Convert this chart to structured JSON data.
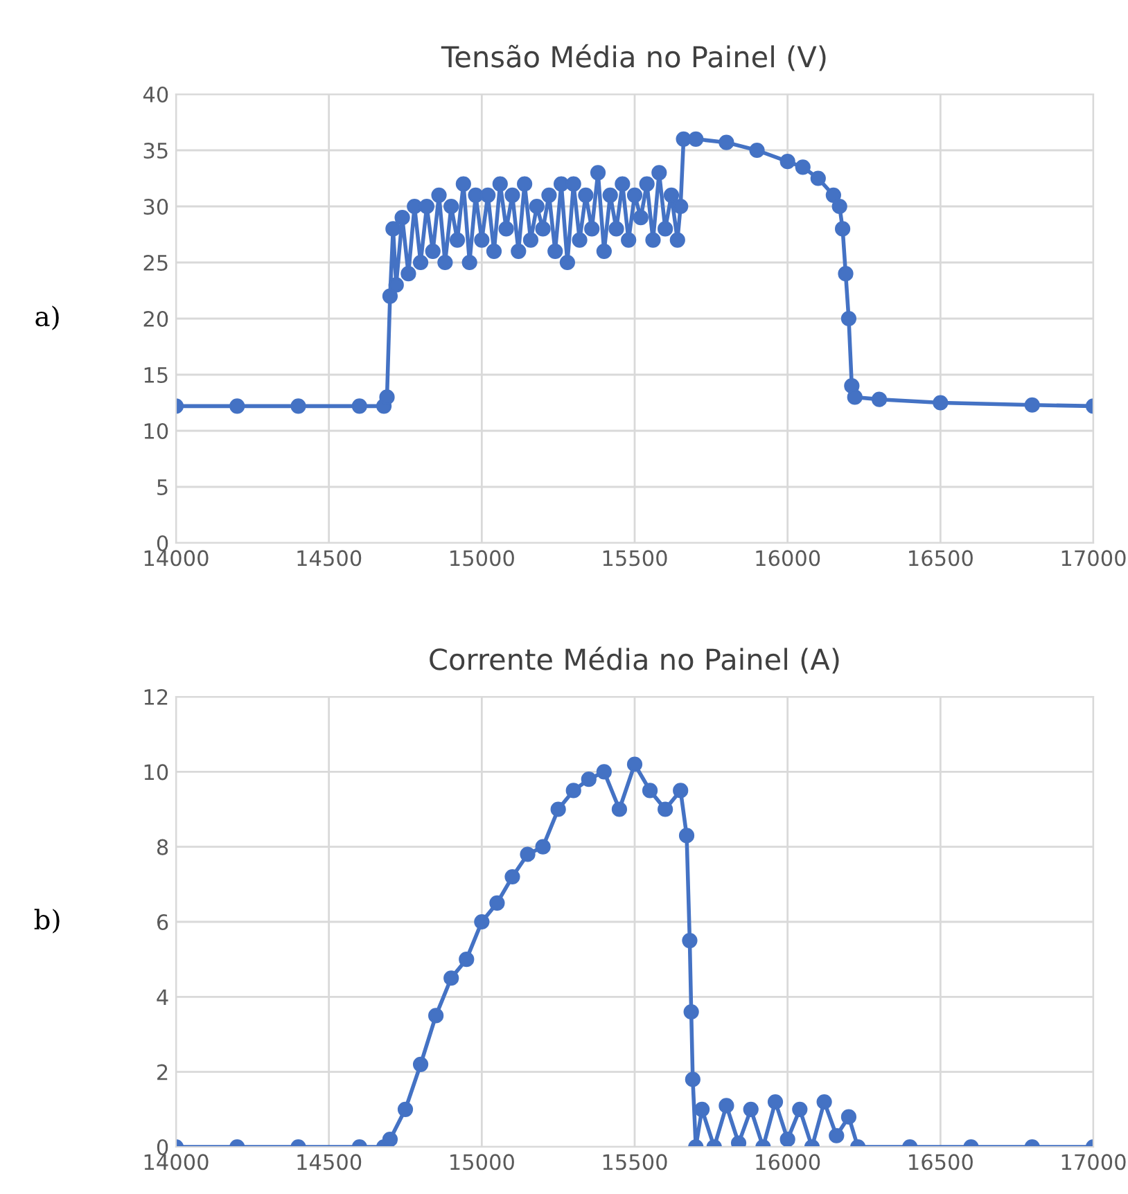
{
  "chart_data": [
    {
      "type": "line",
      "title": "Tensão Média no Painel (V)",
      "annotations": [
        "a)"
      ],
      "marker": "circle",
      "line_style": "solid",
      "grid": true,
      "xlim": [
        14000,
        17000
      ],
      "xticks": [
        14000,
        14500,
        15000,
        15500,
        16000,
        16500,
        17000
      ],
      "ylim": [
        0,
        40
      ],
      "yticks": [
        0,
        5,
        10,
        15,
        20,
        25,
        30,
        35,
        40
      ],
      "series": [
        {
          "color": "#4472c4",
          "x": [
            14000,
            14200,
            14400,
            14600,
            14680,
            14690,
            14700,
            14710,
            14720,
            14740,
            14760,
            14780,
            14800,
            14820,
            14840,
            14860,
            14880,
            14900,
            14920,
            14940,
            14960,
            14980,
            15000,
            15020,
            15040,
            15060,
            15080,
            15100,
            15120,
            15140,
            15160,
            15180,
            15200,
            15220,
            15240,
            15260,
            15280,
            15300,
            15320,
            15340,
            15360,
            15380,
            15400,
            15420,
            15440,
            15460,
            15480,
            15500,
            15520,
            15540,
            15560,
            15580,
            15600,
            15620,
            15640,
            15650,
            15660,
            15700,
            15800,
            15900,
            16000,
            16050,
            16100,
            16150,
            16170,
            16180,
            16190,
            16200,
            16210,
            16220,
            16300,
            16500,
            16800,
            17000
          ],
          "values": [
            12.2,
            12.2,
            12.2,
            12.2,
            12.2,
            13,
            22,
            28,
            23,
            29,
            24,
            30,
            25,
            30,
            26,
            31,
            25,
            30,
            27,
            32,
            25,
            31,
            27,
            31,
            26,
            32,
            28,
            31,
            26,
            32,
            27,
            30,
            28,
            31,
            26,
            32,
            25,
            32,
            27,
            31,
            28,
            33,
            26,
            31,
            28,
            32,
            27,
            31,
            29,
            32,
            27,
            33,
            28,
            31,
            27,
            30,
            36,
            36,
            35.7,
            35,
            34,
            33.5,
            32.5,
            31,
            30,
            28,
            24,
            20,
            14,
            13,
            12.8,
            12.5,
            12.3,
            12.2
          ]
        }
      ]
    },
    {
      "type": "line",
      "title": "Corrente Média no Painel (A)",
      "annotations": [
        "b)"
      ],
      "marker": "circle",
      "line_style": "solid",
      "grid": true,
      "xlim": [
        14000,
        17000
      ],
      "xticks": [
        14000,
        14500,
        15000,
        15500,
        16000,
        16500,
        17000
      ],
      "ylim": [
        0,
        12
      ],
      "yticks": [
        0,
        2,
        4,
        6,
        8,
        10,
        12
      ],
      "series": [
        {
          "color": "#4472c4",
          "x": [
            14000,
            14200,
            14400,
            14600,
            14680,
            14700,
            14750,
            14800,
            14850,
            14900,
            14950,
            15000,
            15050,
            15100,
            15150,
            15200,
            15250,
            15300,
            15350,
            15400,
            15450,
            15500,
            15550,
            15600,
            15650,
            15670,
            15680,
            15685,
            15690,
            15700,
            15720,
            15760,
            15800,
            15840,
            15880,
            15920,
            15960,
            16000,
            16040,
            16080,
            16120,
            16160,
            16200,
            16230,
            16400,
            16600,
            16800,
            17000
          ],
          "values": [
            0,
            0,
            0,
            0,
            0,
            0.2,
            1,
            2.2,
            3.5,
            4.5,
            5,
            6,
            6.5,
            7.2,
            7.8,
            8,
            9,
            9.5,
            9.8,
            10,
            9,
            10.2,
            9.5,
            9,
            9.5,
            8.3,
            5.5,
            3.6,
            1.8,
            0,
            1,
            0,
            1.1,
            0.1,
            1,
            0,
            1.2,
            0.2,
            1,
            0,
            1.2,
            0.3,
            0.8,
            0,
            0,
            0,
            0,
            0
          ]
        }
      ]
    }
  ]
}
